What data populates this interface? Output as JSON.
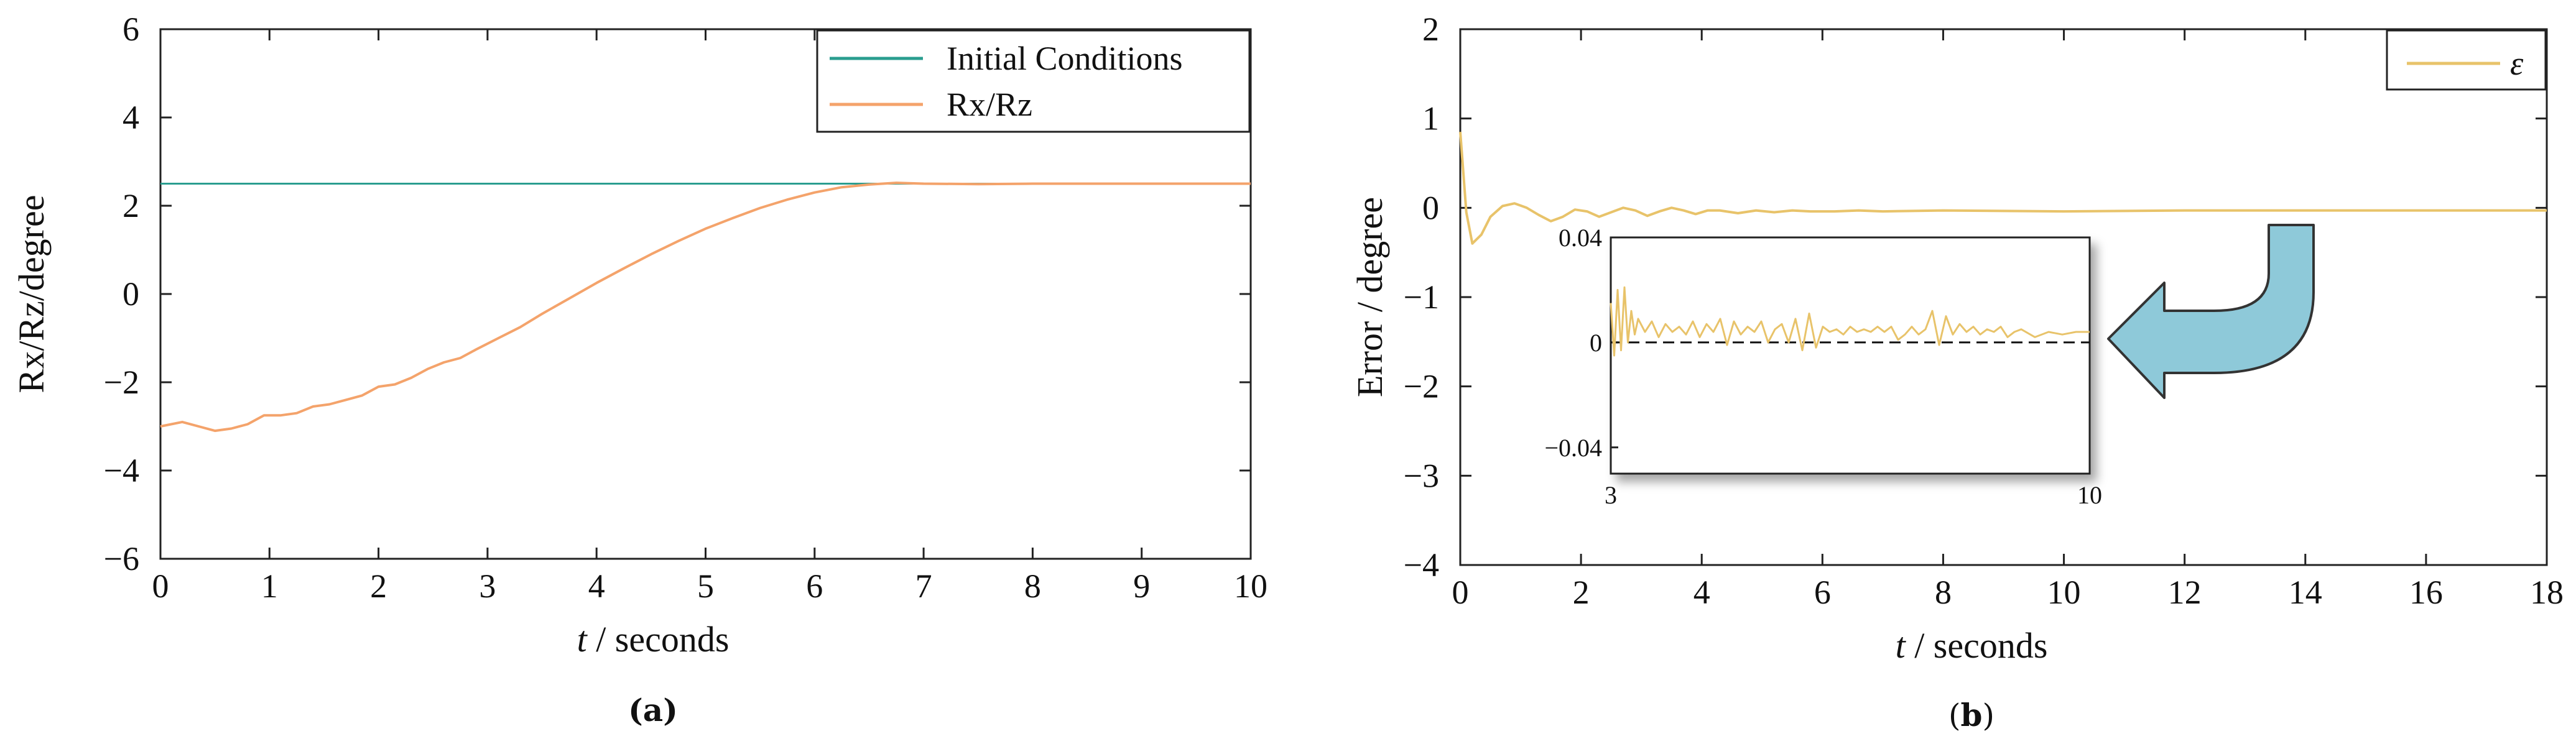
{
  "chart_data": [
    {
      "id": "a",
      "type": "line",
      "caption_open": "(",
      "caption_letter": "a",
      "caption_close": ")",
      "xlabel_var": "t",
      "xlabel_unit": " / seconds",
      "ylabel": "Rx/Rz/degree",
      "xlim": [
        0,
        10
      ],
      "ylim": [
        -6,
        6
      ],
      "x_ticks": [
        0,
        1,
        2,
        3,
        4,
        5,
        6,
        7,
        8,
        9,
        10
      ],
      "x_tick_labels": [
        "0",
        "1",
        "2",
        "3",
        "4",
        "5",
        "6",
        "7",
        "8",
        "9",
        "10"
      ],
      "y_ticks": [
        -6,
        -4,
        -2,
        0,
        2,
        4,
        6
      ],
      "y_tick_labels": [
        "−6",
        "−4",
        "−2",
        "0",
        "2",
        "4",
        "6"
      ],
      "legend_position": "top-right",
      "series": [
        {
          "name": "Initial Conditions",
          "color": "#2a9d8f",
          "x": [
            0,
            10
          ],
          "y": [
            2.5,
            2.5
          ]
        },
        {
          "name": "Rx/Rz",
          "color": "#f4a36b",
          "x": [
            0,
            0.2,
            0.35,
            0.5,
            0.65,
            0.8,
            0.95,
            1.1,
            1.25,
            1.4,
            1.55,
            1.7,
            1.85,
            2.0,
            2.15,
            2.3,
            2.45,
            2.6,
            2.75,
            2.9,
            3.1,
            3.3,
            3.5,
            3.75,
            4.0,
            4.25,
            4.5,
            4.75,
            5.0,
            5.25,
            5.5,
            5.75,
            6.0,
            6.25,
            6.5,
            6.75,
            7.0,
            7.5,
            8.0,
            9.0,
            10.0
          ],
          "y": [
            -3.0,
            -2.9,
            -3.0,
            -3.1,
            -3.05,
            -2.95,
            -2.75,
            -2.75,
            -2.7,
            -2.55,
            -2.5,
            -2.4,
            -2.3,
            -2.1,
            -2.05,
            -1.9,
            -1.7,
            -1.55,
            -1.45,
            -1.25,
            -1.0,
            -0.75,
            -0.45,
            -0.1,
            0.25,
            0.58,
            0.9,
            1.2,
            1.48,
            1.72,
            1.95,
            2.14,
            2.3,
            2.42,
            2.48,
            2.52,
            2.5,
            2.49,
            2.5,
            2.5,
            2.5
          ]
        }
      ]
    },
    {
      "id": "b",
      "type": "line",
      "caption_open": "(",
      "caption_letter": "b",
      "caption_close": ")",
      "xlabel_var": "t",
      "xlabel_unit": " / seconds",
      "ylabel": "Error / degree",
      "xlim": [
        0,
        18
      ],
      "ylim": [
        -4,
        2
      ],
      "x_ticks": [
        0,
        2,
        4,
        6,
        8,
        10,
        12,
        14,
        16,
        18
      ],
      "x_tick_labels": [
        "0",
        "2",
        "4",
        "6",
        "8",
        "10",
        "12",
        "14",
        "16",
        "18"
      ],
      "y_ticks": [
        -4,
        -3,
        -2,
        -1,
        0,
        1,
        2
      ],
      "y_tick_labels": [
        "−4",
        "−3",
        "−2",
        "−1",
        "0",
        "1",
        "2"
      ],
      "legend_position": "top-right",
      "series": [
        {
          "name": "ε",
          "color": "#e8c36a",
          "x": [
            0,
            0.1,
            0.2,
            0.35,
            0.5,
            0.7,
            0.9,
            1.1,
            1.3,
            1.5,
            1.7,
            1.9,
            2.1,
            2.3,
            2.5,
            2.7,
            2.9,
            3.1,
            3.3,
            3.5,
            3.7,
            3.9,
            4.1,
            4.3,
            4.6,
            4.9,
            5.2,
            5.5,
            5.8,
            6.2,
            6.6,
            7.0,
            8.0,
            10.0,
            12.0,
            14.0,
            16.0,
            18.0
          ],
          "y": [
            0.85,
            -0.05,
            -0.4,
            -0.3,
            -0.1,
            0.02,
            0.05,
            0.0,
            -0.08,
            -0.15,
            -0.1,
            -0.02,
            -0.04,
            -0.1,
            -0.05,
            0.0,
            -0.03,
            -0.09,
            -0.04,
            0.0,
            -0.03,
            -0.07,
            -0.03,
            -0.03,
            -0.06,
            -0.03,
            -0.05,
            -0.03,
            -0.04,
            -0.04,
            -0.03,
            -0.04,
            -0.03,
            -0.04,
            -0.03,
            -0.03,
            -0.03,
            -0.03
          ]
        }
      ],
      "inset": {
        "xlim": [
          3,
          10
        ],
        "ylim": [
          -0.05,
          0.04
        ],
        "x_tick_labels": [
          "3",
          "10"
        ],
        "y_ticks": [
          0.04,
          0,
          -0.04
        ],
        "y_tick_labels": [
          "0.04",
          "0",
          "−0.04"
        ],
        "reference_line_y": 0,
        "series": {
          "color": "#e8c36a",
          "x": [
            3.0,
            3.05,
            3.1,
            3.15,
            3.2,
            3.25,
            3.3,
            3.35,
            3.4,
            3.5,
            3.6,
            3.7,
            3.8,
            3.9,
            4.0,
            4.1,
            4.2,
            4.3,
            4.4,
            4.5,
            4.6,
            4.7,
            4.8,
            4.9,
            5.0,
            5.1,
            5.2,
            5.3,
            5.4,
            5.5,
            5.6,
            5.7,
            5.8,
            5.9,
            6.0,
            6.1,
            6.2,
            6.3,
            6.4,
            6.5,
            6.6,
            6.7,
            6.8,
            6.9,
            7.0,
            7.1,
            7.2,
            7.3,
            7.4,
            7.5,
            7.6,
            7.7,
            7.8,
            7.9,
            8.0,
            8.1,
            8.2,
            8.3,
            8.4,
            8.5,
            8.6,
            8.7,
            8.8,
            8.9,
            9.0,
            9.2,
            9.4,
            9.6,
            9.8,
            10.0
          ],
          "y": [
            0.015,
            -0.005,
            0.02,
            -0.003,
            0.021,
            0.0,
            0.012,
            0.003,
            0.009,
            0.004,
            0.008,
            0.002,
            0.007,
            0.004,
            0.006,
            0.003,
            0.008,
            0.002,
            0.007,
            0.004,
            0.009,
            -0.001,
            0.008,
            0.003,
            0.006,
            0.004,
            0.008,
            0.0,
            0.005,
            0.007,
            0.0,
            0.009,
            -0.003,
            0.011,
            -0.002,
            0.006,
            0.004,
            0.005,
            0.003,
            0.006,
            0.004,
            0.005,
            0.004,
            0.006,
            0.004,
            0.006,
            0.001,
            0.003,
            0.006,
            0.003,
            0.005,
            0.012,
            -0.001,
            0.01,
            0.003,
            0.007,
            0.004,
            0.006,
            0.003,
            0.005,
            0.004,
            0.006,
            0.002,
            0.004,
            0.005,
            0.002,
            0.004,
            0.003,
            0.004,
            0.004
          ]
        }
      }
    }
  ]
}
